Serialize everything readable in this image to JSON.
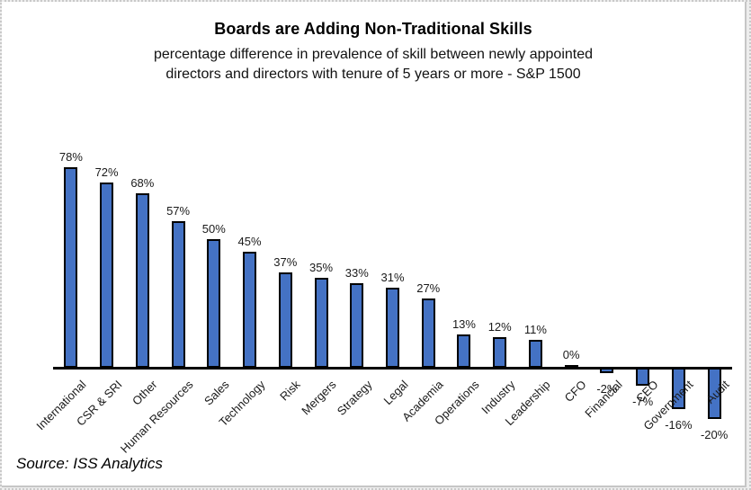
{
  "page": {
    "source_note": "Source: ISS Analytics"
  },
  "chart_data": {
    "type": "bar",
    "title": "Boards are Adding Non-Traditional Skills",
    "subtitle_lines": [
      "percentage difference in prevalence of skill between newly appointed",
      "directors and directors with tenure of 5 years or more - S&P 1500"
    ],
    "categories": [
      "International",
      "CSR & SRI",
      "Other",
      "Human Resources",
      "Sales",
      "Technology",
      "Risk",
      "Mergers",
      "Strategy",
      "Legal",
      "Academia",
      "Operations",
      "Industry",
      "Leadership",
      "CFO",
      "Financial",
      "CEO",
      "Government",
      "Audit"
    ],
    "values": [
      78,
      72,
      68,
      57,
      50,
      45,
      37,
      35,
      33,
      31,
      27,
      13,
      12,
      11,
      0,
      -2,
      -7,
      -16,
      -20
    ],
    "value_labels": [
      "78%",
      "72%",
      "68%",
      "57%",
      "50%",
      "45%",
      "37%",
      "35%",
      "33%",
      "31%",
      "27%",
      "13%",
      "12%",
      "11%",
      "0%",
      "-2%",
      "-7%",
      "-16%",
      "-20%"
    ],
    "xlabel": "",
    "ylabel": "",
    "ylim": [
      -25,
      85
    ],
    "grid": false,
    "legend": false,
    "bar_color": "#4472C4",
    "bar_border_color": "#000000",
    "axis_color": "#000000",
    "label_color": "#1a1a1a"
  }
}
